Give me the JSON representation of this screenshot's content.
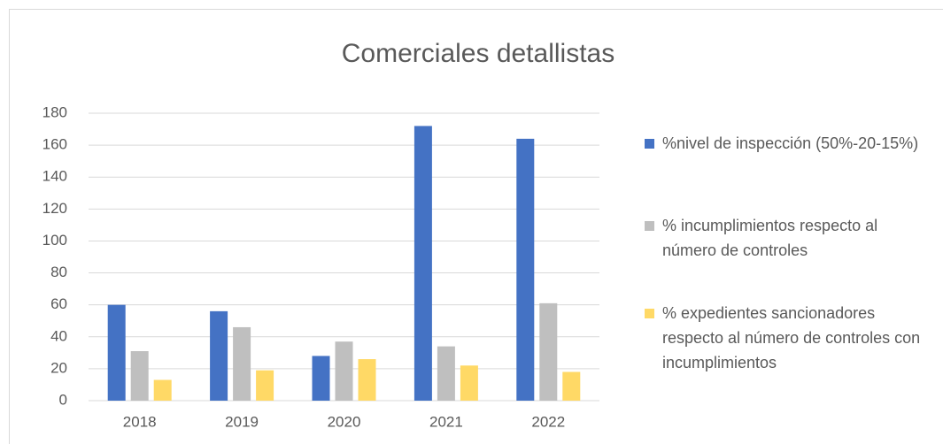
{
  "chart_data": {
    "type": "bar",
    "title": "Comerciales detallistas",
    "categories": [
      "2018",
      "2019",
      "2020",
      "2021",
      "2022"
    ],
    "series": [
      {
        "name": "%nivel de inspección (50%-20-15%)",
        "color": "#4472c4",
        "values": [
          60,
          56,
          28,
          172,
          164
        ]
      },
      {
        "name": "% incumplimientos respecto al número de controles",
        "color": "#bfbfbf",
        "values": [
          31,
          46,
          37,
          34,
          61
        ]
      },
      {
        "name": "% expedientes sancionadores respecto al número de controles con incumplimientos",
        "color": "#ffd966",
        "values": [
          13,
          19,
          26,
          22,
          18
        ]
      }
    ],
    "ylim": [
      0,
      180
    ],
    "yticks": [
      0,
      20,
      40,
      60,
      80,
      100,
      120,
      140,
      160,
      180
    ],
    "grid": true,
    "legend": "right"
  }
}
